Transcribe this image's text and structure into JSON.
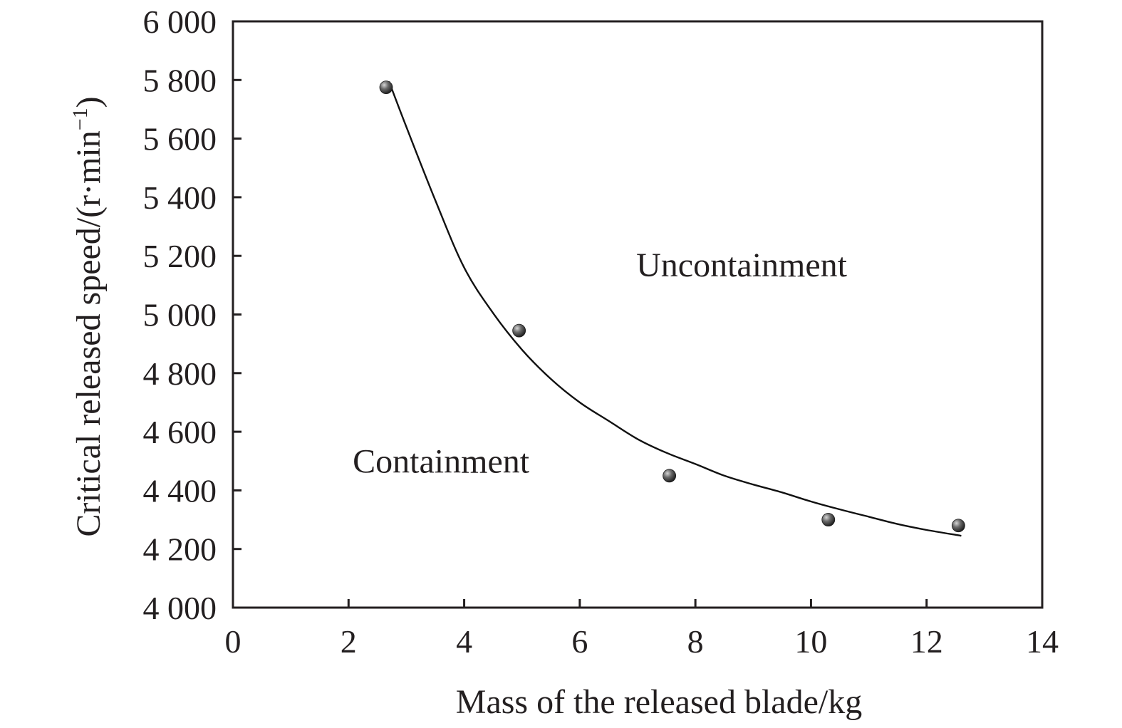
{
  "chart_data": {
    "type": "scatter",
    "xlabel": "Mass of the released blade/kg",
    "ylabel_main": "Critical released speed/(r·min",
    "ylabel_sup": "−1",
    "ylabel_close": ")",
    "xlim": [
      0,
      14
    ],
    "ylim": [
      4000,
      6000
    ],
    "x_ticks": [
      0,
      2,
      4,
      6,
      8,
      10,
      12,
      14
    ],
    "x_tick_labels": [
      "0",
      "2",
      "4",
      "6",
      "8",
      "10",
      "12",
      "14"
    ],
    "y_ticks": [
      4000,
      4200,
      4400,
      4600,
      4800,
      5000,
      5200,
      5400,
      5600,
      5800,
      6000
    ],
    "y_tick_labels": [
      "4 000",
      "4 200",
      "4 400",
      "4 600",
      "4 800",
      "5 000",
      "5 200",
      "5 400",
      "5 600",
      "5 800",
      "6 000"
    ],
    "grid": false,
    "points": [
      {
        "x": 2.65,
        "y": 5775
      },
      {
        "x": 4.95,
        "y": 4945
      },
      {
        "x": 7.55,
        "y": 4450
      },
      {
        "x": 10.3,
        "y": 4300
      },
      {
        "x": 12.55,
        "y": 4280
      }
    ],
    "fit_curve": {
      "x": [
        2.7,
        3.0,
        3.5,
        4.0,
        4.5,
        5.0,
        5.5,
        6.0,
        6.5,
        7.0,
        7.5,
        8.0,
        8.5,
        9.0,
        9.5,
        10.0,
        10.5,
        11.0,
        11.5,
        12.0,
        12.6
      ],
      "y": [
        5795,
        5640,
        5390,
        5160,
        5005,
        4880,
        4780,
        4700,
        4637,
        4575,
        4528,
        4490,
        4450,
        4420,
        4393,
        4362,
        4335,
        4310,
        4285,
        4265,
        4245
      ]
    },
    "annotations": [
      {
        "text": "Uncontainment",
        "x": 8.8,
        "y": 5130
      },
      {
        "text": "Containment",
        "x": 3.6,
        "y": 4460
      }
    ],
    "colors": {
      "axis": "#231f20",
      "curve": "#111111",
      "marker_light": "#c8c8c8",
      "marker_dark": "#2a2a2a"
    }
  }
}
